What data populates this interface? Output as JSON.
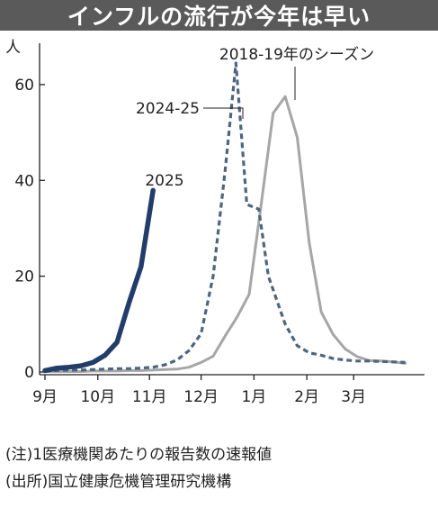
{
  "title": "インフルの流行が今年は早い",
  "notes": [
    "(注)1医療機関あたりの報告数の速報値",
    "(出所)国立健康危機管理研究機構"
  ],
  "chart_data": {
    "type": "line",
    "y_unit_label": "人",
    "ylim": [
      0,
      66
    ],
    "yticks": [
      0,
      20,
      40,
      60
    ],
    "xlim": [
      0,
      31
    ],
    "xticks": [
      {
        "label": "9月",
        "x": 0
      },
      {
        "label": "10月",
        "x": 4.4
      },
      {
        "label": "11月",
        "x": 8.7
      },
      {
        "label": "12月",
        "x": 13
      },
      {
        "label": "1月",
        "x": 17.4
      },
      {
        "label": "2月",
        "x": 21.8
      },
      {
        "label": "3月",
        "x": 25.7
      }
    ],
    "grid": false,
    "series": [
      {
        "name": "2018-19年のシーズン",
        "color": "#a6a6a6",
        "style": "solid",
        "x": [
          0,
          1,
          2,
          3,
          4,
          5,
          6,
          7,
          8,
          9,
          10,
          11,
          12,
          13,
          14,
          15,
          16,
          17,
          18,
          19,
          20,
          21,
          22,
          23,
          24,
          25,
          26,
          27,
          28,
          29,
          30
        ],
        "y": [
          0.1,
          0.1,
          0.1,
          0.1,
          0.2,
          0.2,
          0.2,
          0.3,
          0.3,
          0.4,
          0.5,
          0.6,
          1.0,
          2.0,
          3.3,
          7.5,
          11.5,
          16.2,
          35.0,
          54.0,
          57.5,
          49.0,
          27.0,
          12.5,
          7.8,
          4.8,
          3.2,
          2.4,
          2.3,
          2.1,
          1.8
        ]
      },
      {
        "name": "2024-25",
        "color": "#4d6680",
        "style": "dashed",
        "x": [
          0,
          1,
          2,
          3,
          4,
          5,
          6,
          7,
          8,
          9,
          10,
          11,
          12,
          13,
          14,
          15,
          15.9,
          16.8,
          17.8,
          18.6,
          20,
          21,
          22,
          23,
          24,
          25,
          26,
          27,
          28,
          29,
          30
        ],
        "y": [
          0.2,
          0.3,
          0.4,
          0.4,
          0.5,
          0.6,
          0.7,
          0.7,
          0.8,
          1.0,
          1.5,
          2.5,
          4.5,
          8.0,
          20.0,
          42.0,
          64.5,
          35.0,
          34.0,
          20.0,
          10.0,
          5.5,
          4.0,
          3.5,
          2.8,
          2.5,
          2.3,
          2.3,
          2.2,
          2.1,
          2.0
        ]
      },
      {
        "name": "2025",
        "color": "#223d6a",
        "style": "solid",
        "x": [
          0,
          1,
          2,
          3,
          4,
          5,
          6,
          7,
          8,
          9
        ],
        "y": [
          0.3,
          0.8,
          1.0,
          1.3,
          2.0,
          3.5,
          6.2,
          14.5,
          22.0,
          37.9
        ]
      }
    ]
  }
}
